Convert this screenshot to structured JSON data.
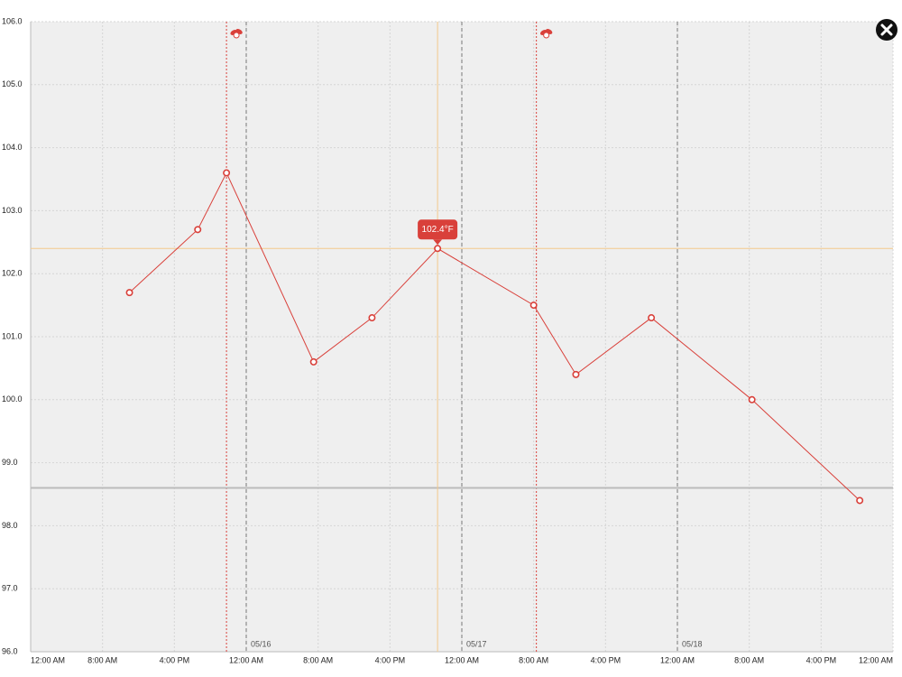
{
  "chart_data": {
    "type": "line",
    "x": [
      11,
      18.6,
      21.8,
      31.5,
      38,
      45.3,
      56,
      60.7,
      69.1,
      80.3,
      92.3
    ],
    "series": [
      {
        "color": "#d9403a",
        "values": [
          101.7,
          102.7,
          103.6,
          100.6,
          101.3,
          102.4,
          101.5,
          100.4,
          101.3,
          100.0,
          98.4
        ]
      }
    ],
    "xlim": [
      0,
      96
    ],
    "ylim": [
      96,
      106
    ],
    "xticks": [
      {
        "value": 0,
        "label": "12:00 AM"
      },
      {
        "value": 8,
        "label": "8:00 AM"
      },
      {
        "value": 16,
        "label": "4:00 PM"
      },
      {
        "value": 24,
        "label": "12:00 AM"
      },
      {
        "value": 32,
        "label": "8:00 AM"
      },
      {
        "value": 40,
        "label": "4:00 PM"
      },
      {
        "value": 48,
        "label": "12:00 AM"
      },
      {
        "value": 56,
        "label": "8:00 AM"
      },
      {
        "value": 64,
        "label": "4:00 PM"
      },
      {
        "value": 72,
        "label": "12:00 AM"
      },
      {
        "value": 80,
        "label": "8:00 AM"
      },
      {
        "value": 88,
        "label": "4:00 PM"
      },
      {
        "value": 96,
        "label": "12:00 AM"
      }
    ],
    "yticks": [
      {
        "value": 96,
        "label": "96.0"
      },
      {
        "value": 97,
        "label": "97.0"
      },
      {
        "value": 98,
        "label": "98.0"
      },
      {
        "value": 99,
        "label": "99.0"
      },
      {
        "value": 100,
        "label": "100.0"
      },
      {
        "value": 101,
        "label": "101.0"
      },
      {
        "value": 102,
        "label": "102.0"
      },
      {
        "value": 103,
        "label": "103.0"
      },
      {
        "value": 104,
        "label": "104.0"
      },
      {
        "value": 105,
        "label": "105.0"
      },
      {
        "value": 106,
        "label": "106.0"
      }
    ],
    "day_markers": [
      {
        "value": 24,
        "label": "05/16"
      },
      {
        "value": 48,
        "label": "05/17"
      },
      {
        "value": 72,
        "label": "05/18"
      }
    ],
    "medication_times": [
      21.8,
      56.3
    ],
    "reference_line": 98.6,
    "selected_index": 5,
    "tooltip_label": "102.4°F",
    "grid": true,
    "background": "#efefef"
  }
}
